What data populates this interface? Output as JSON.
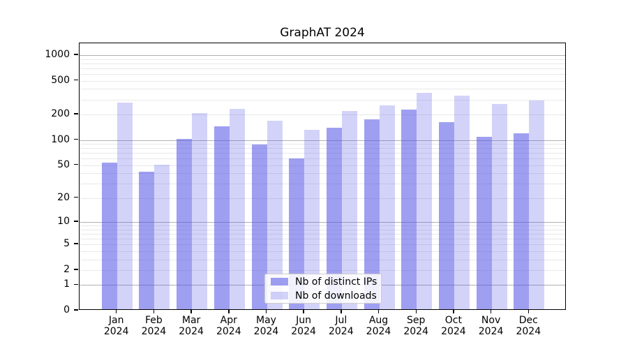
{
  "chart_data": {
    "type": "bar",
    "title": "GraphAT 2024",
    "x_tick_labels": [
      {
        "month": "Jan",
        "year": "2024"
      },
      {
        "month": "Feb",
        "year": "2024"
      },
      {
        "month": "Mar",
        "year": "2024"
      },
      {
        "month": "Apr",
        "year": "2024"
      },
      {
        "month": "May",
        "year": "2024"
      },
      {
        "month": "Jun",
        "year": "2024"
      },
      {
        "month": "Jul",
        "year": "2024"
      },
      {
        "month": "Aug",
        "year": "2024"
      },
      {
        "month": "Sep",
        "year": "2024"
      },
      {
        "month": "Oct",
        "year": "2024"
      },
      {
        "month": "Nov",
        "year": "2024"
      },
      {
        "month": "Dec",
        "year": "2024"
      }
    ],
    "series": [
      {
        "name": "Nb of distinct IPs",
        "values": [
          52,
          40,
          100,
          139,
          85,
          58,
          135,
          170,
          222,
          155,
          105,
          115
        ],
        "color": "#9f9fef",
        "alpha": 0.55
      },
      {
        "name": "Nb of downloads",
        "values": [
          265,
          49,
          200,
          226,
          162,
          128,
          211,
          247,
          350,
          322,
          255,
          281
        ],
        "color": "#d8d8fa",
        "alpha": 0.25
      }
    ],
    "y_ticks": [
      0,
      1,
      2,
      5,
      10,
      20,
      50,
      100,
      200,
      500,
      1000
    ],
    "y_scale": "log10(1+y)",
    "ylim": [
      0,
      1380
    ],
    "grid": "horizontal, major decades darker + faint minors",
    "legend_position": "lower center"
  },
  "colors": {
    "series_base": "#5050e6",
    "grid_major": "#b0b0b0",
    "grid_minor": "#e8e8e8",
    "axis": "#000000",
    "background": "#ffffff",
    "legend_border": "#cccccc"
  }
}
